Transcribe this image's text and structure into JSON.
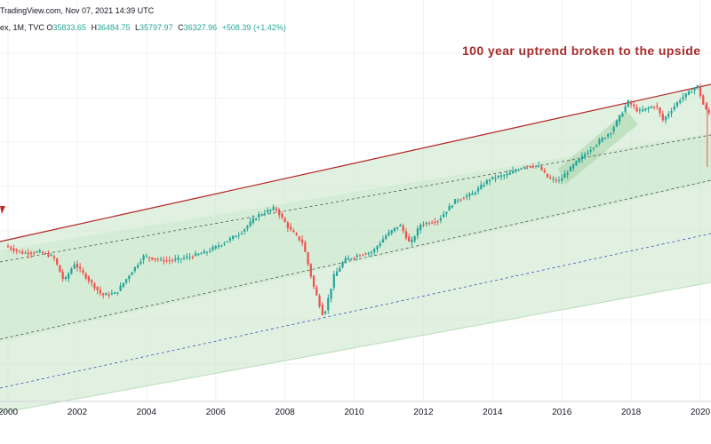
{
  "header": {
    "source": "TradingView.com, Nov 07, 2021 14:39 UTC",
    "symbol": "ex, 1M, TVC",
    "ohlc": [
      {
        "label": "O",
        "value": "35833.65"
      },
      {
        "label": "H",
        "value": "36484.75"
      },
      {
        "label": "L",
        "value": "35797.97"
      },
      {
        "label": "C",
        "value": "36327.96"
      }
    ],
    "change": "+508.39 (+1.42%)"
  },
  "annotation": "100 year uptrend broken to the upside",
  "colors": {
    "up": "#26a69a",
    "down": "#ef5350",
    "channel_fill": "#c8e6c9",
    "trendline": "#b22222",
    "midline": "#555555",
    "lower_dash": "#3f51b5",
    "grid": "#eef3ee",
    "annotation": "#a52a2a"
  },
  "chart_data": {
    "type": "line",
    "x_tick_labels": [
      "2000",
      "2002",
      "2004",
      "2006",
      "2008",
      "2010",
      "2012",
      "2014",
      "2016",
      "2018",
      "2020"
    ],
    "x_range": [
      1999.9,
      2020.6
    ],
    "y_scale": "log",
    "grid": true,
    "series": [
      {
        "values_x": [
          2000.0,
          2000.5,
          2001.0,
          2001.4,
          2001.7,
          2002.0,
          2002.5,
          2002.8,
          2003.2,
          2003.6,
          2004.0,
          2004.5,
          2004.8,
          2005.3,
          2005.8,
          2006.3,
          2006.8,
          2007.3,
          2007.8,
          2008.2,
          2008.6,
          2008.9,
          2009.2,
          2009.5,
          2009.8,
          2010.3,
          2010.6,
          2011.0,
          2011.4,
          2011.7,
          2012.0,
          2012.5,
          2013.0,
          2013.5,
          2014.0,
          2014.5,
          2015.0,
          2015.4,
          2015.7,
          2016.0,
          2016.5,
          2017.0,
          2017.5,
          2018.0,
          2018.3,
          2018.8,
          2019.0,
          2019.5,
          2020.0,
          2020.2,
          2020.4
        ],
        "values_y": [
          11100,
          10650,
          10700,
          10400,
          9000,
          10000,
          8900,
          8300,
          8400,
          9400,
          10450,
          10200,
          10200,
          10400,
          10700,
          11300,
          12000,
          13300,
          13900,
          12300,
          11300,
          8800,
          7300,
          9300,
          10200,
          10600,
          10700,
          11800,
          12600,
          11200,
          12600,
          12900,
          14500,
          15100,
          16500,
          16900,
          17800,
          17800,
          16500,
          16300,
          18200,
          20000,
          21800,
          26000,
          24500,
          25500,
          23300,
          26400,
          28500,
          25000,
          24000
        ]
      }
    ]
  }
}
